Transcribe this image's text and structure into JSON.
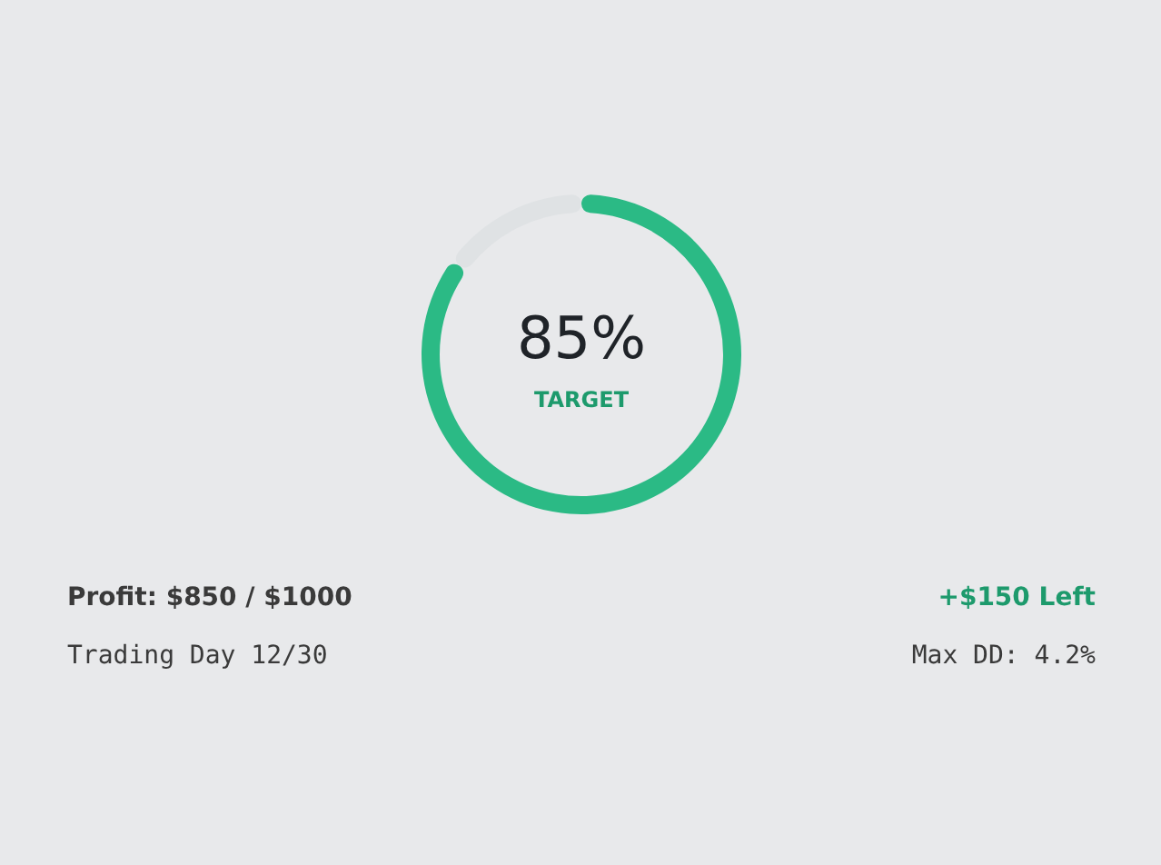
{
  "chart_data": {
    "type": "donut",
    "categories": [
      null,
      null
    ],
    "values": [
      85,
      15
    ],
    "colors": [
      "#2bba85",
      "#dfe2e4"
    ],
    "annotations": [
      "85%",
      "TARGET",
      "Profit: $850 / $1000",
      "+$150 Left",
      "Trading Day 12/30",
      "Max DD: 4.2%"
    ]
  }
}
